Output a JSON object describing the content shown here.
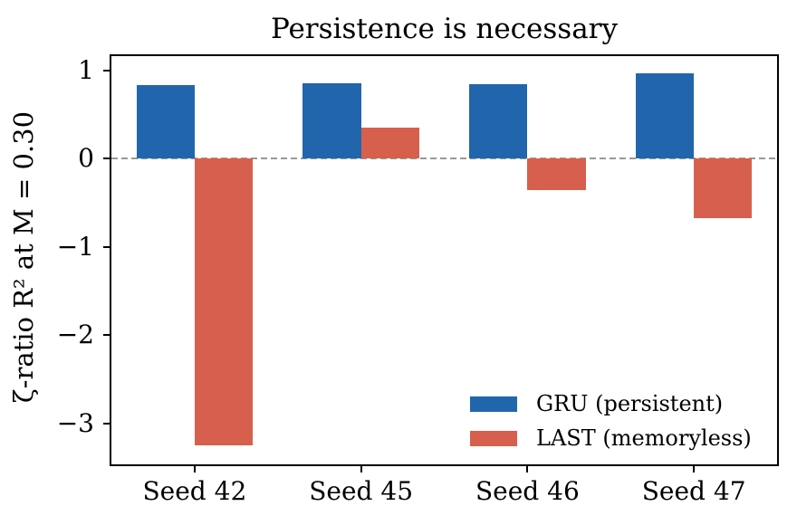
{
  "chart_data": {
    "type": "bar",
    "title": "Persistence is necessary",
    "xlabel": "",
    "ylabel": "ζ-ratio R² at M = 0.30",
    "categories": [
      "Seed 42",
      "Seed 45",
      "Seed 46",
      "Seed 47"
    ],
    "series": [
      {
        "name": "GRU (persistent)",
        "color": "#2166ac",
        "values": [
          0.83,
          0.85,
          0.84,
          0.97
        ]
      },
      {
        "name": "LAST (memoryless)",
        "color": "#d6604d",
        "values": [
          -3.25,
          0.35,
          -0.36,
          -0.67
        ]
      }
    ],
    "ylim": [
      -3.46,
      1.16
    ],
    "yticks": [
      1,
      0,
      -1,
      -2,
      -3
    ],
    "ytick_labels": [
      "1",
      "0",
      "−1",
      "−2",
      "−3"
    ],
    "zero_line": {
      "y": 0,
      "style": "dashed",
      "color": "#999999"
    },
    "grid": false,
    "legend": {
      "position": "lower right",
      "frame": false
    },
    "bar_width_frac": 0.35,
    "spine_color": "#000000",
    "background_color": "#ffffff"
  }
}
